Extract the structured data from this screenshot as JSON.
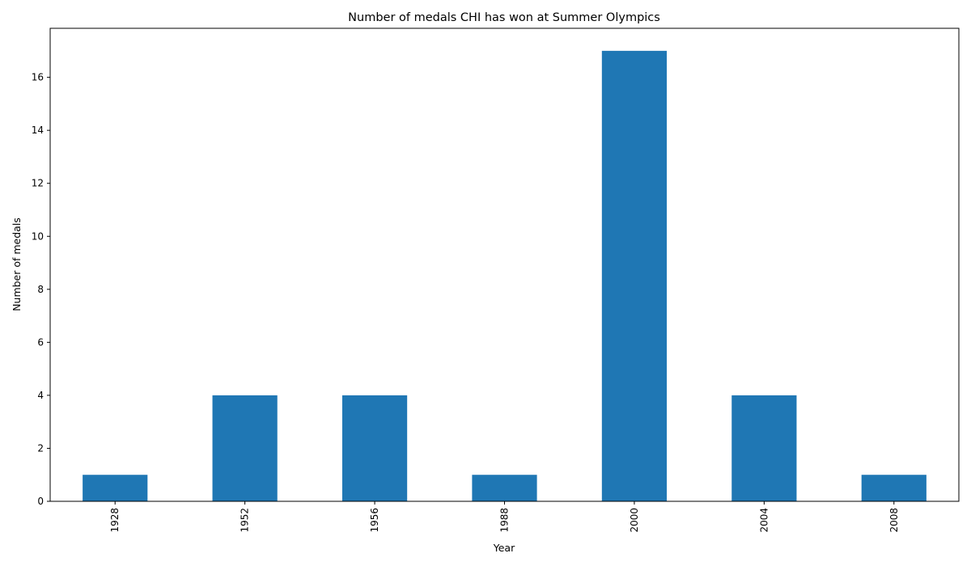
{
  "chart_data": {
    "type": "bar",
    "title": "Number of medals CHI has won at Summer Olympics",
    "xlabel": "Year",
    "ylabel": "Number of medals",
    "categories": [
      "1928",
      "1952",
      "1956",
      "1988",
      "2000",
      "2004",
      "2008"
    ],
    "values": [
      1,
      4,
      4,
      1,
      17,
      4,
      1
    ],
    "ylim": [
      0,
      17.85
    ],
    "yticks": [
      0,
      2,
      4,
      6,
      8,
      10,
      12,
      14,
      16
    ],
    "bar_color": "#1f77b4",
    "grid": false,
    "legend": "none",
    "xtick_rotation": "vertical"
  }
}
